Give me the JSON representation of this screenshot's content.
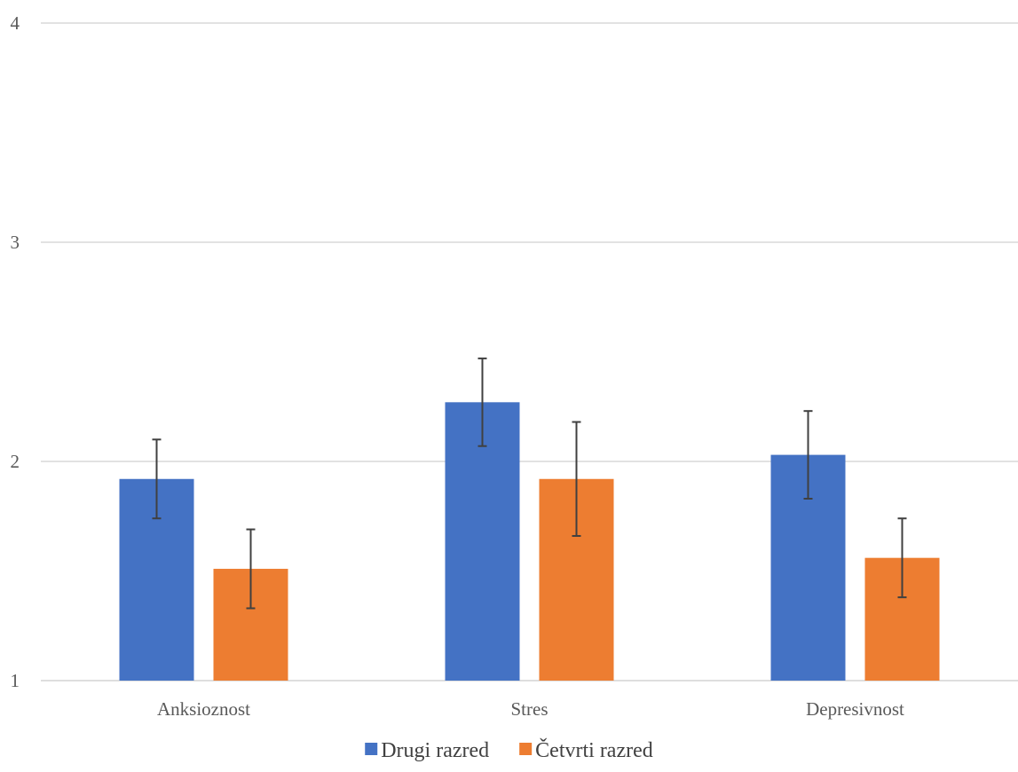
{
  "chart_data": {
    "type": "bar",
    "title": "",
    "xlabel": "",
    "ylabel": "",
    "categories": [
      "Anksioznost",
      "Stres",
      "Depresivnost"
    ],
    "series": [
      {
        "name": "Drugi razred",
        "color": "#4472C4",
        "values": [
          1.92,
          2.27,
          2.03
        ],
        "error": [
          0.18,
          0.2,
          0.2
        ]
      },
      {
        "name": "Četvrti razred",
        "color": "#ED7D31",
        "values": [
          1.51,
          1.92,
          1.56
        ],
        "error": [
          0.18,
          0.26,
          0.18
        ]
      }
    ],
    "ylim": [
      1,
      4
    ],
    "yticks": [
      1,
      2,
      3,
      4
    ],
    "grid": true,
    "legend_position": "bottom",
    "gridline_color": "#D9D9D9",
    "errorbar_color": "#404040"
  }
}
